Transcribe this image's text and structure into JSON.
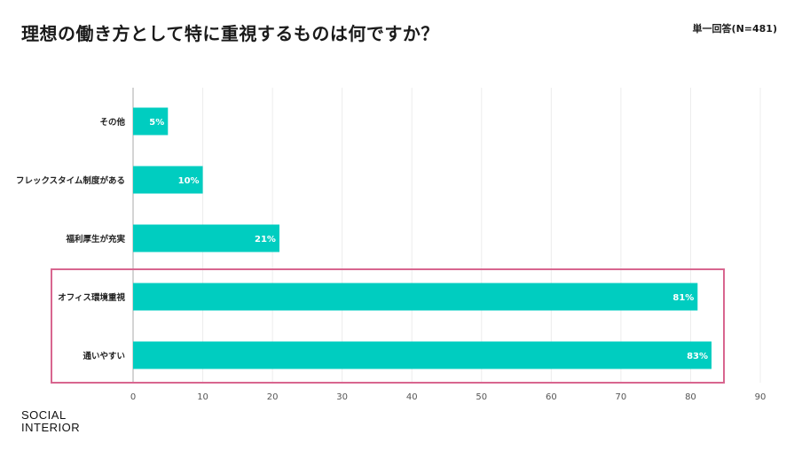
{
  "title": "理想の働き方として特に重視するものは何ですか？",
  "meta": "単一回答(N=481)",
  "logo": {
    "line1": "SOCIAL",
    "line2": "INTERIOR"
  },
  "colors": {
    "bar": "#00cdc0",
    "highlight": "#d8668f",
    "grid": "#ececec",
    "axis": "#aaaaaa"
  },
  "chart_data": {
    "type": "bar",
    "orientation": "horizontal",
    "categories": [
      "その他",
      "フレックスタイム制度がある",
      "福利厚生が充実",
      "オフィス環境重視",
      "通いやすい"
    ],
    "values": [
      5,
      10,
      21,
      81,
      83
    ],
    "value_labels": [
      "5%",
      "10%",
      "21%",
      "81%",
      "83%"
    ],
    "xlim": [
      0,
      90
    ],
    "xticks": [
      "0",
      "10",
      "20",
      "30",
      "40",
      "50",
      "60",
      "70",
      "80",
      "90"
    ],
    "grid": true,
    "highlighted_categories": [
      "オフィス環境重視",
      "通いやすい"
    ]
  }
}
